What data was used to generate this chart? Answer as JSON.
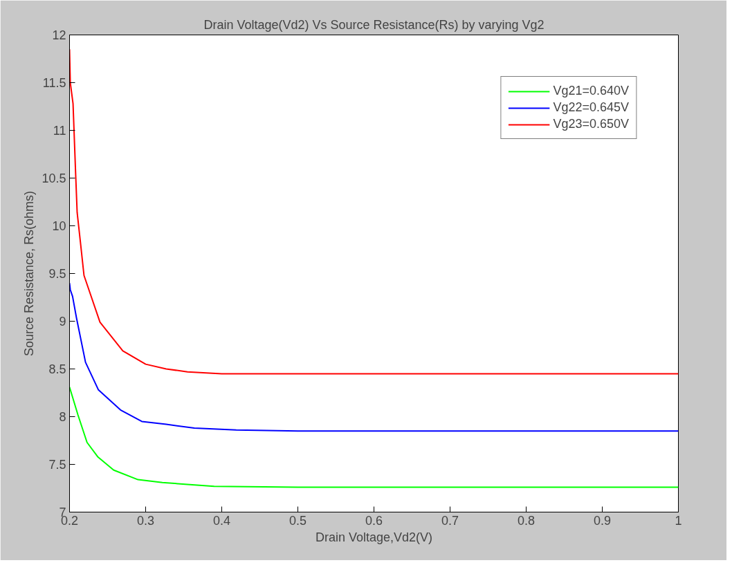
{
  "chart_data": {
    "type": "line",
    "title": "Drain Voltage(Vd2) Vs Source Resistance(Rs) by varying Vg2",
    "xlabel": "Drain Voltage,Vd2(V)",
    "ylabel": "Source Resistance, Rs(ohms)",
    "xlim": [
      0.2,
      1
    ],
    "ylim": [
      7,
      12
    ],
    "xticks": [
      0.2,
      0.3,
      0.4,
      0.5,
      0.6,
      0.7,
      0.8,
      0.9,
      1
    ],
    "yticks": [
      7,
      7.5,
      8,
      8.5,
      9,
      9.5,
      10,
      10.5,
      11,
      11.5,
      12
    ],
    "grid": false,
    "legend": "top right",
    "marker": "none",
    "line_style": "solid",
    "series": [
      {
        "name": "Vg21=0.640V",
        "color": "#00ff00",
        "x": [
          0.2,
          0.211,
          0.223,
          0.237,
          0.258,
          0.29,
          0.322,
          0.355,
          0.39,
          0.5,
          1
        ],
        "values": [
          8.31,
          8.02,
          7.73,
          7.58,
          7.44,
          7.34,
          7.31,
          7.29,
          7.27,
          7.26,
          7.26
        ]
      },
      {
        "name": "Vg22=0.645V",
        "color": "#0000ff",
        "x": [
          0.2,
          0.201,
          0.204,
          0.209,
          0.221,
          0.238,
          0.267,
          0.295,
          0.327,
          0.364,
          0.419,
          0.5,
          1
        ],
        "values": [
          9.4,
          9.33,
          9.26,
          9.04,
          8.57,
          8.28,
          8.07,
          7.95,
          7.92,
          7.88,
          7.86,
          7.85,
          7.85
        ]
      },
      {
        "name": "Vg23=0.650V",
        "color": "#ff0000",
        "x": [
          0.2,
          0.201,
          0.2046,
          0.208,
          0.21,
          0.214,
          0.219,
          0.24,
          0.27,
          0.3,
          0.327,
          0.355,
          0.4,
          0.5,
          1
        ],
        "values": [
          11.85,
          11.5,
          11.28,
          10.55,
          10.14,
          9.85,
          9.48,
          8.99,
          8.69,
          8.55,
          8.5,
          8.47,
          8.45,
          8.45,
          8.45
        ]
      }
    ]
  }
}
